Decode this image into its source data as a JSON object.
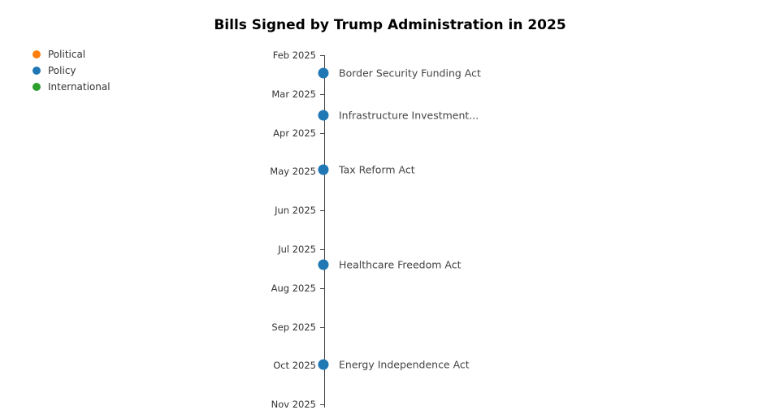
{
  "title": "Bills Signed by Trump Administration in 2025",
  "legend": {
    "items": [
      {
        "label": "Political",
        "color": "#ff7f0e"
      },
      {
        "label": "Policy",
        "color": "#1f77b4"
      },
      {
        "label": "International",
        "color": "#2ca02c"
      }
    ]
  },
  "chart_data": {
    "type": "scatter",
    "subtype": "vertical-timeline",
    "title": "Bills Signed by Trump Administration in 2025",
    "legend_entries": [
      "Political",
      "Policy",
      "International"
    ],
    "axis": {
      "orientation": "vertical",
      "ticks": [
        "Feb 2025",
        "Mar 2025",
        "Apr 2025",
        "May 2025",
        "Jun 2025",
        "Jul 2025",
        "Aug 2025",
        "Sep 2025",
        "Oct 2025",
        "Nov 2025"
      ],
      "grid": false
    },
    "series": [
      {
        "name": "Policy",
        "color": "#1f77b4",
        "events": [
          {
            "label": "Border Security Funding Act",
            "month_offset": 0.45,
            "approx_date": "mid-Feb 2025"
          },
          {
            "label": "Infrastructure Investment...",
            "month_offset": 1.55,
            "approx_date": "mid-Mar 2025"
          },
          {
            "label": "Tax Reform Act",
            "month_offset": 2.95,
            "approx_date": "May 2025"
          },
          {
            "label": "Healthcare Freedom Act",
            "month_offset": 5.4,
            "approx_date": "mid-Jul 2025"
          },
          {
            "label": "Energy Independence Act",
            "month_offset": 7.98,
            "approx_date": "Oct 2025"
          }
        ]
      }
    ]
  }
}
